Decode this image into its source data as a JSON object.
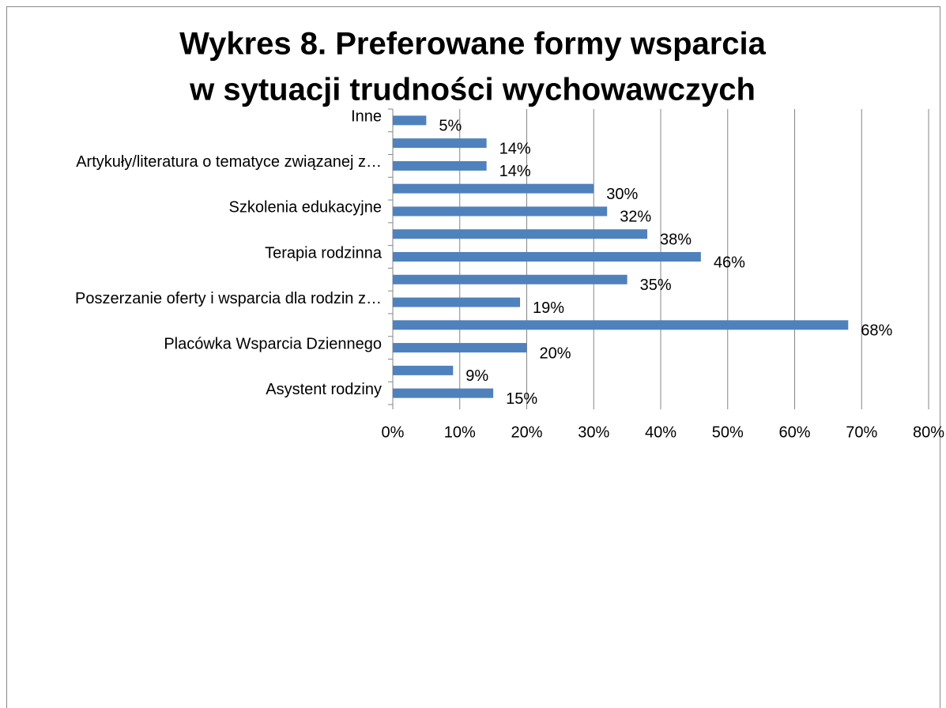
{
  "chart_data": {
    "type": "barh",
    "title": [
      "Wykres 8. Preferowane formy wsparcia",
      "w sytuacji trudności wychowawczych"
    ],
    "categories": [
      "Inne",
      null,
      "Artykuły/literatura o tematyce związanej z…",
      null,
      "Szkolenia edukacyjne",
      null,
      "Terapia rodzinna",
      null,
      "Poszerzanie oferty i wsparcia dla rodzin z…",
      null,
      "Placówka Wsparcia Dziennego",
      null,
      "Asystent rodziny"
    ],
    "values": [
      5,
      14,
      14,
      30,
      32,
      38,
      46,
      35,
      19,
      68,
      20,
      9,
      15
    ],
    "value_labels": [
      "5%",
      "14%",
      "14%",
      "30%",
      "32%",
      "38%",
      "46%",
      "35%",
      "19%",
      "68%",
      "20%",
      "9%",
      "15%"
    ],
    "color": "#4f81bd",
    "xlim": [
      0,
      80
    ],
    "xticks": [
      {
        "value": 0,
        "label": "0%"
      },
      {
        "value": 10,
        "label": "10%"
      },
      {
        "value": 20,
        "label": "20%"
      },
      {
        "value": 30,
        "label": "30%"
      },
      {
        "value": 40,
        "label": "40%"
      },
      {
        "value": 50,
        "label": "50%"
      },
      {
        "value": 60,
        "label": "60%"
      },
      {
        "value": 70,
        "label": "70%"
      },
      {
        "value": 80,
        "label": "80%"
      }
    ],
    "grid": true
  }
}
